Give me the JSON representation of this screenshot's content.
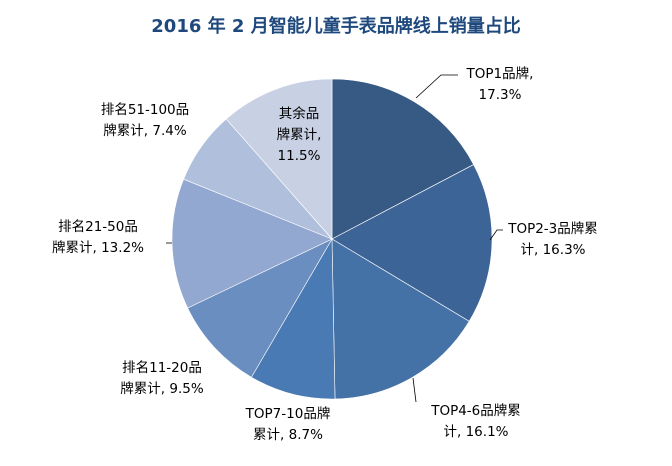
{
  "chart_data": {
    "type": "pie",
    "title": "2016 年 2 月智能儿童手表品牌线上销量占比",
    "start_angle": "12 o'clock",
    "direction": "clockwise",
    "slices": [
      {
        "label_lines": [
          "TOP1品牌,",
          "17.3%"
        ],
        "value": 17.3,
        "color": "#375A84"
      },
      {
        "label_lines": [
          "TOP2-3品牌累",
          "计, 16.3%"
        ],
        "value": 16.3,
        "color": "#3D6496"
      },
      {
        "label_lines": [
          "TOP4-6品牌累",
          "计, 16.1%"
        ],
        "value": 16.1,
        "color": "#4472A6"
      },
      {
        "label_lines": [
          "TOP7-10品牌",
          "累计, 8.7%"
        ],
        "value": 8.7,
        "color": "#4A7AB4"
      },
      {
        "label_lines": [
          "排名11-20品",
          "牌累计, 9.5%"
        ],
        "value": 9.5,
        "color": "#6A8EC0"
      },
      {
        "label_lines": [
          "排名21-50品",
          "牌累计, 13.2%"
        ],
        "value": 13.2,
        "color": "#93A8D0"
      },
      {
        "label_lines": [
          "排名51-100品",
          "牌累计, 7.4%"
        ],
        "value": 7.4,
        "color": "#B0C0DC"
      },
      {
        "label_lines": [
          "其余品",
          "牌累计,",
          "11.5%"
        ],
        "value": 11.5,
        "color": "#C8D1E4"
      }
    ],
    "legend": "none"
  }
}
